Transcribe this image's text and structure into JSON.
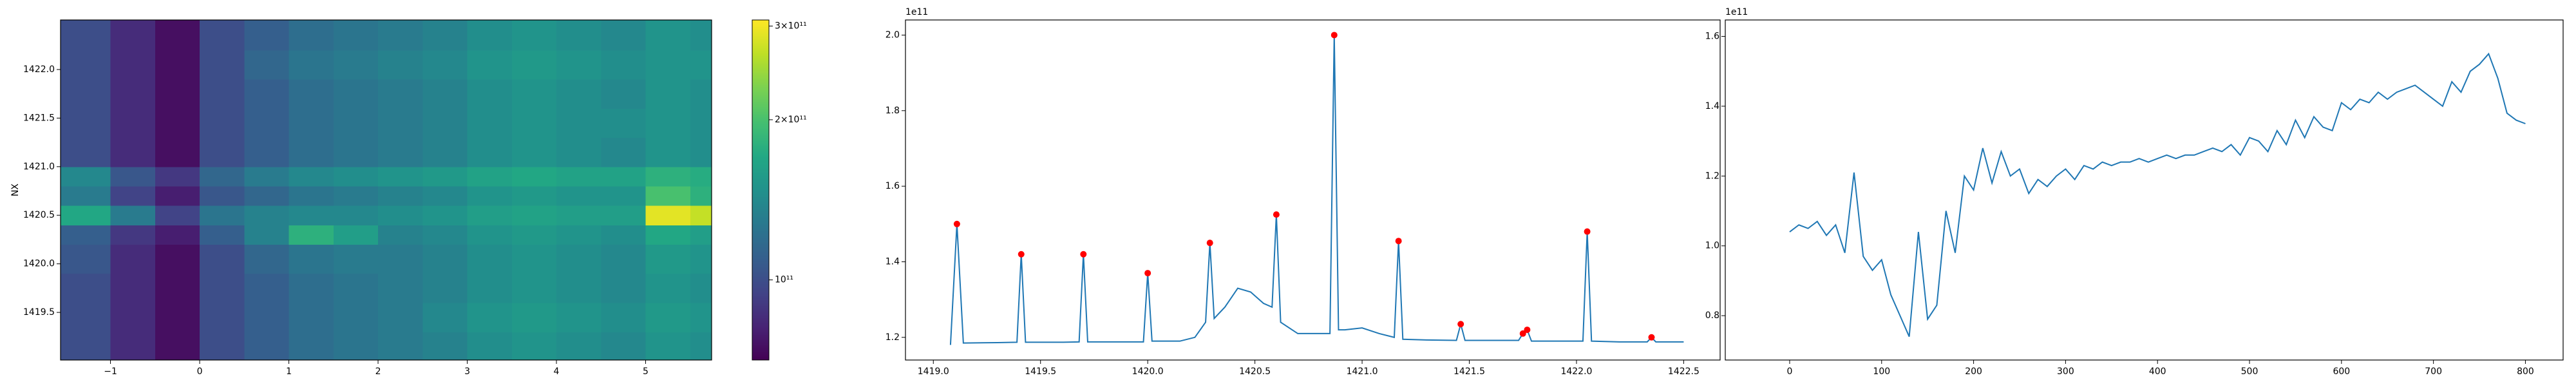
{
  "chart_data": [
    {
      "type": "heatmap",
      "y_label": "NX",
      "x_edges": [
        -1.56,
        -1.0,
        -0.5,
        0,
        0.5,
        1.0,
        1.5,
        2.0,
        2.5,
        3.0,
        3.5,
        4.0,
        4.5,
        5.0,
        5.5,
        5.74
      ],
      "y_edges": [
        1419.01,
        1419.3,
        1419.6,
        1419.9,
        1420.2,
        1420.4,
        1420.6,
        1420.8,
        1421.0,
        1421.3,
        1421.6,
        1421.9,
        1422.2,
        1422.51
      ],
      "z": [
        [
          100000000000.0,
          85000000000.0,
          75000000000.0,
          100000000000.0,
          110000000000.0,
          120000000000.0,
          125000000000.0,
          130000000000.0,
          135000000000.0,
          145000000000.0,
          150000000000.0,
          145000000000.0,
          140000000000.0,
          150000000000.0,
          145000000000.0
        ],
        [
          100000000000.0,
          85000000000.0,
          75000000000.0,
          100000000000.0,
          110000000000.0,
          120000000000.0,
          125000000000.0,
          130000000000.0,
          140000000000.0,
          150000000000.0,
          155000000000.0,
          150000000000.0,
          145000000000.0,
          155000000000.0,
          150000000000.0
        ],
        [
          100000000000.0,
          85000000000.0,
          75000000000.0,
          100000000000.0,
          110000000000.0,
          120000000000.0,
          125000000000.0,
          130000000000.0,
          135000000000.0,
          145000000000.0,
          150000000000.0,
          145000000000.0,
          140000000000.0,
          150000000000.0,
          145000000000.0
        ],
        [
          105000000000.0,
          85000000000.0,
          75000000000.0,
          100000000000.0,
          115000000000.0,
          125000000000.0,
          130000000000.0,
          130000000000.0,
          135000000000.0,
          145000000000.0,
          150000000000.0,
          145000000000.0,
          140000000000.0,
          155000000000.0,
          150000000000.0
        ],
        [
          110000000000.0,
          90000000000.0,
          80000000000.0,
          110000000000.0,
          135000000000.0,
          180000000000.0,
          160000000000.0,
          135000000000.0,
          140000000000.0,
          150000000000.0,
          155000000000.0,
          150000000000.0,
          145000000000.0,
          170000000000.0,
          160000000000.0
        ],
        [
          170000000000.0,
          130000000000.0,
          95000000000.0,
          125000000000.0,
          135000000000.0,
          140000000000.0,
          140000000000.0,
          145000000000.0,
          150000000000.0,
          160000000000.0,
          165000000000.0,
          160000000000.0,
          160000000000.0,
          290000000000.0,
          270000000000.0
        ],
        [
          130000000000.0,
          95000000000.0,
          80000000000.0,
          105000000000.0,
          115000000000.0,
          125000000000.0,
          130000000000.0,
          135000000000.0,
          140000000000.0,
          150000000000.0,
          155000000000.0,
          150000000000.0,
          150000000000.0,
          200000000000.0,
          180000000000.0
        ],
        [
          140000000000.0,
          105000000000.0,
          90000000000.0,
          115000000000.0,
          130000000000.0,
          140000000000.0,
          145000000000.0,
          150000000000.0,
          155000000000.0,
          165000000000.0,
          170000000000.0,
          165000000000.0,
          165000000000.0,
          180000000000.0,
          175000000000.0
        ],
        [
          100000000000.0,
          85000000000.0,
          75000000000.0,
          100000000000.0,
          110000000000.0,
          120000000000.0,
          125000000000.0,
          130000000000.0,
          135000000000.0,
          145000000000.0,
          150000000000.0,
          145000000000.0,
          140000000000.0,
          150000000000.0,
          145000000000.0
        ],
        [
          100000000000.0,
          85000000000.0,
          75000000000.0,
          100000000000.0,
          110000000000.0,
          120000000000.0,
          125000000000.0,
          130000000000.0,
          135000000000.0,
          145000000000.0,
          150000000000.0,
          145000000000.0,
          145000000000.0,
          150000000000.0,
          145000000000.0
        ],
        [
          100000000000.0,
          85000000000.0,
          75000000000.0,
          100000000000.0,
          110000000000.0,
          120000000000.0,
          125000000000.0,
          130000000000.0,
          135000000000.0,
          145000000000.0,
          150000000000.0,
          145000000000.0,
          140000000000.0,
          150000000000.0,
          145000000000.0
        ],
        [
          100000000000.0,
          85000000000.0,
          75000000000.0,
          100000000000.0,
          115000000000.0,
          125000000000.0,
          130000000000.0,
          135000000000.0,
          140000000000.0,
          150000000000.0,
          155000000000.0,
          150000000000.0,
          145000000000.0,
          150000000000.0,
          150000000000.0
        ],
        [
          100000000000.0,
          85000000000.0,
          75000000000.0,
          100000000000.0,
          110000000000.0,
          120000000000.0,
          125000000000.0,
          130000000000.0,
          135000000000.0,
          145000000000.0,
          150000000000.0,
          145000000000.0,
          140000000000.0,
          150000000000.0,
          145000000000.0
        ]
      ],
      "xlim": [
        -1.56,
        5.74
      ],
      "ylim": [
        1419.01,
        1422.51
      ],
      "xticks": [
        {
          "value": -1,
          "label": "−1"
        },
        0,
        1,
        2,
        3,
        4,
        5
      ],
      "yticks": [
        1419.5,
        {
          "value": 1420,
          "label": "1420.0"
        },
        1420.5,
        {
          "value": 1421,
          "label": "1421.0"
        },
        1421.5,
        {
          "value": 1422,
          "label": "1422.0"
        }
      ],
      "colormap": "viridis",
      "zscale": "log",
      "zlim": [
        70700000000.0,
        308000000000.0
      ],
      "zticks": [
        {
          "value": 100000000000.0,
          "label": "10¹¹"
        },
        {
          "value": 200000000000.0,
          "label": "2×10¹¹"
        },
        {
          "value": 300000000000.0,
          "label": "3×10¹¹"
        }
      ]
    },
    {
      "type": "line",
      "offset_label": "1e11",
      "series": [
        {
          "style": "line",
          "color": "#1f77b4",
          "x": [
            1419.08,
            1419.11,
            1419.14,
            1419.3,
            1419.39,
            1419.41,
            1419.43,
            1419.6,
            1419.68,
            1419.7,
            1419.72,
            1419.9,
            1419.98,
            1420.0,
            1420.02,
            1420.15,
            1420.22,
            1420.27,
            1420.29,
            1420.31,
            1420.36,
            1420.42,
            1420.48,
            1420.54,
            1420.58,
            1420.6,
            1420.62,
            1420.7,
            1420.85,
            1420.87,
            1420.89,
            1420.92,
            1421.0,
            1421.08,
            1421.15,
            1421.17,
            1421.19,
            1421.3,
            1421.44,
            1421.46,
            1421.48,
            1421.6,
            1421.73,
            1421.75,
            1421.77,
            1421.79,
            1421.9,
            1422.03,
            1422.05,
            1422.07,
            1422.2,
            1422.33,
            1422.35,
            1422.37,
            1422.5
          ],
          "values": [
            1.18,
            1.5,
            1.185,
            1.186,
            1.187,
            1.42,
            1.187,
            1.187,
            1.188,
            1.42,
            1.188,
            1.188,
            1.188,
            1.37,
            1.19,
            1.19,
            1.2,
            1.24,
            1.45,
            1.25,
            1.28,
            1.33,
            1.32,
            1.29,
            1.28,
            1.525,
            1.24,
            1.21,
            1.21,
            2.0,
            1.22,
            1.22,
            1.225,
            1.21,
            1.2,
            1.455,
            1.195,
            1.193,
            1.192,
            1.235,
            1.192,
            1.192,
            1.192,
            1.21,
            1.22,
            1.19,
            1.19,
            1.19,
            1.48,
            1.19,
            1.188,
            1.188,
            1.2,
            1.188,
            1.188
          ]
        },
        {
          "style": "points",
          "color": "#ff0000",
          "x": [
            1419.11,
            1419.41,
            1419.7,
            1420.0,
            1420.29,
            1420.6,
            1420.87,
            1421.17,
            1421.46,
            1421.75,
            1421.77,
            1422.05,
            1422.35
          ],
          "values": [
            1.5,
            1.42,
            1.42,
            1.37,
            1.45,
            1.525,
            2.0,
            1.455,
            1.235,
            1.21,
            1.22,
            1.48,
            1.2
          ]
        }
      ],
      "xlim": [
        1418.87,
        1422.67
      ],
      "ylim": [
        1.14,
        2.04
      ],
      "xticks": [
        {
          "value": 1419,
          "label": "1419.0"
        },
        1419.5,
        {
          "value": 1420,
          "label": "1420.0"
        },
        1420.5,
        {
          "value": 1421,
          "label": "1421.0"
        },
        1421.5,
        {
          "value": 1422,
          "label": "1422.0"
        },
        1422.5
      ],
      "yticks": [
        1.2,
        1.4,
        1.6,
        1.8,
        {
          "value": 2,
          "label": "2.0"
        }
      ]
    },
    {
      "type": "line",
      "offset_label": "1e11",
      "series": [
        {
          "style": "line",
          "color": "#1f77b4",
          "x": [
            0,
            10,
            20,
            30,
            40,
            50,
            60,
            70,
            80,
            90,
            100,
            110,
            120,
            130,
            140,
            150,
            160,
            170,
            180,
            190,
            200,
            210,
            220,
            230,
            240,
            250,
            260,
            270,
            280,
            290,
            300,
            310,
            320,
            330,
            340,
            350,
            360,
            370,
            380,
            390,
            400,
            410,
            420,
            430,
            440,
            450,
            460,
            470,
            480,
            490,
            500,
            510,
            520,
            530,
            540,
            550,
            560,
            570,
            580,
            590,
            600,
            610,
            620,
            630,
            640,
            650,
            660,
            670,
            680,
            690,
            700,
            710,
            720,
            730,
            740,
            750,
            760,
            770,
            780,
            790,
            800
          ],
          "values": [
            1.04,
            1.06,
            1.05,
            1.07,
            1.03,
            1.06,
            0.98,
            1.21,
            0.97,
            0.93,
            0.96,
            0.86,
            0.8,
            0.74,
            1.04,
            0.79,
            0.83,
            1.1,
            0.98,
            1.2,
            1.16,
            1.28,
            1.18,
            1.27,
            1.2,
            1.22,
            1.15,
            1.19,
            1.17,
            1.2,
            1.22,
            1.19,
            1.23,
            1.22,
            1.24,
            1.23,
            1.24,
            1.24,
            1.25,
            1.24,
            1.25,
            1.26,
            1.25,
            1.26,
            1.26,
            1.27,
            1.28,
            1.27,
            1.29,
            1.26,
            1.31,
            1.3,
            1.27,
            1.33,
            1.29,
            1.36,
            1.31,
            1.37,
            1.34,
            1.33,
            1.41,
            1.39,
            1.42,
            1.41,
            1.44,
            1.42,
            1.44,
            1.45,
            1.46,
            1.44,
            1.42,
            1.4,
            1.47,
            1.44,
            1.5,
            1.52,
            1.55,
            1.48,
            1.38,
            1.36,
            1.35
          ]
        }
      ],
      "xlim": [
        -70,
        841
      ],
      "ylim": [
        0.673,
        1.647
      ],
      "xticks": [
        0,
        100,
        200,
        300,
        400,
        500,
        600,
        700,
        800
      ],
      "yticks": [
        0.8,
        {
          "value": 1,
          "label": "1.0"
        },
        1.2,
        1.4,
        1.6
      ]
    }
  ]
}
